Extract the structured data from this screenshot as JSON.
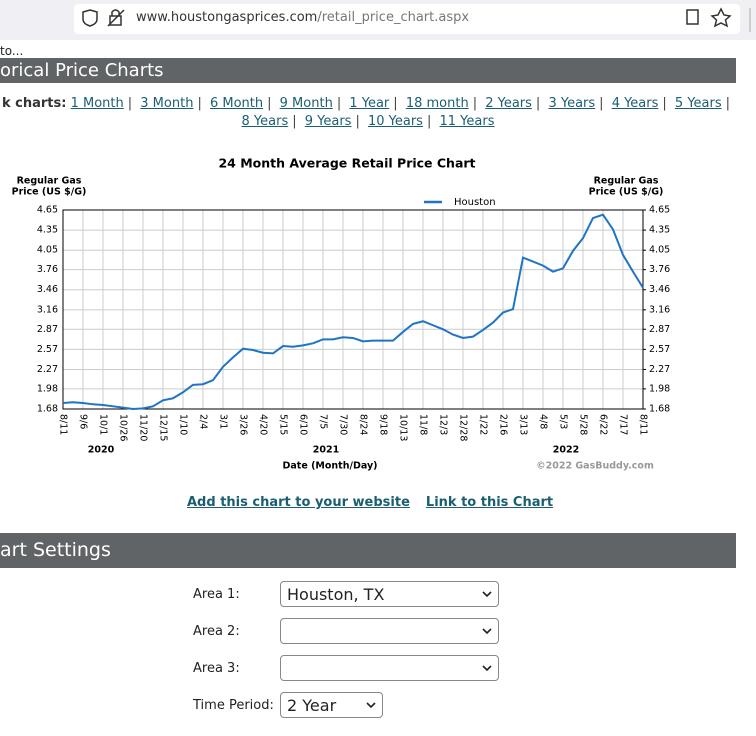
{
  "browser": {
    "url_host": "www.houstongasprices.com",
    "url_path": "/retail_price_chart.aspx",
    "tab_text": "to..."
  },
  "header": {
    "title": "orical Price Charts"
  },
  "quick_links": {
    "label": "k charts:",
    "links": [
      "1 Month",
      "3 Month",
      "6 Month",
      "9 Month",
      "1 Year",
      "18 month",
      "2 Years",
      "3 Years",
      "4 Years",
      "5 Years",
      "8 Years",
      "9 Years",
      "10 Years",
      "11 Years"
    ]
  },
  "chart_data": {
    "type": "line",
    "title": "24 Month Average Retail Price Chart",
    "ylabel": [
      "Regular Gas",
      "Price (US $/G)"
    ],
    "y2label": [
      "Regular Gas",
      "Price (US $/G)"
    ],
    "xlabel": "Date (Month/Day)",
    "annotations": [
      "2020",
      "2021",
      "2022"
    ],
    "credit": "©2022 GasBuddy.com",
    "categories": [
      "8/11",
      null,
      "9/6",
      null,
      "10/1",
      null,
      "10/26",
      null,
      "11/20",
      null,
      "12/15",
      null,
      "1/10",
      null,
      "2/4",
      null,
      "3/1",
      null,
      "3/26",
      null,
      "4/20",
      null,
      "5/15",
      null,
      "6/10",
      null,
      "7/5",
      null,
      "7/30",
      null,
      "8/24",
      null,
      "9/18",
      null,
      "10/13",
      null,
      "11/8",
      null,
      "12/3",
      null,
      "12/28",
      null,
      "1/22",
      null,
      "2/16",
      null,
      "3/13",
      null,
      "4/8",
      null,
      "5/3",
      null,
      "5/28",
      null,
      "6/22",
      null,
      "7/17",
      null,
      "8/11"
    ],
    "series": [
      {
        "name": "Houston",
        "color": "#1f74c4",
        "values": [
          1.77,
          1.78,
          1.77,
          1.75,
          1.74,
          1.72,
          1.7,
          1.68,
          1.69,
          1.72,
          1.81,
          1.84,
          1.93,
          2.04,
          2.05,
          2.11,
          2.31,
          2.45,
          2.58,
          2.56,
          2.52,
          2.51,
          2.62,
          2.61,
          2.63,
          2.66,
          2.72,
          2.72,
          2.75,
          2.74,
          2.69,
          2.7,
          2.7,
          2.7,
          2.83,
          2.95,
          2.99,
          2.93,
          2.87,
          2.79,
          2.74,
          2.76,
          2.86,
          2.97,
          3.12,
          3.17,
          3.94,
          3.88,
          3.82,
          3.73,
          3.78,
          4.04,
          4.23,
          4.53,
          4.58,
          4.36,
          3.98,
          3.73,
          3.49
        ]
      }
    ],
    "ylim": [
      1.68,
      4.65
    ],
    "yticks": [
      1.68,
      1.98,
      2.27,
      2.57,
      2.87,
      3.16,
      3.46,
      3.76,
      4.05,
      4.35,
      4.65
    ],
    "y2lim": [
      1.68,
      4.65
    ],
    "y2ticks": [
      1.68,
      1.98,
      2.27,
      2.57,
      2.87,
      3.16,
      3.46,
      3.76,
      4.05,
      4.35,
      4.65
    ],
    "grid": true,
    "legend": "top"
  },
  "chart_links": [
    "Add this chart to your website",
    "Link to this Chart"
  ],
  "settings": {
    "title": "art Settings",
    "fields": [
      {
        "label": "Area 1:",
        "value": "Houston, TX"
      },
      {
        "label": "Area 2:"
      },
      {
        "label": "Area 3:"
      },
      {
        "label": "Time Period:",
        "value": "2 Year"
      }
    ]
  }
}
